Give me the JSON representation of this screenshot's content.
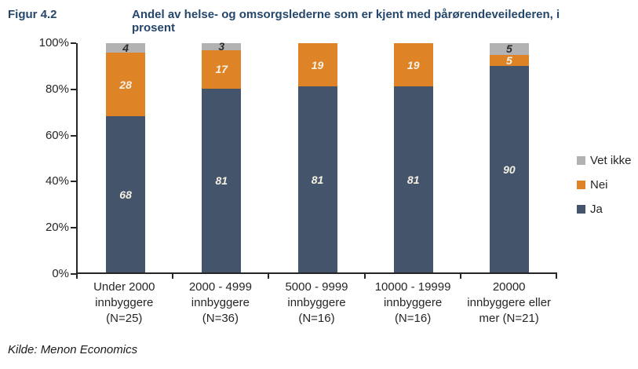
{
  "figure_label": "Figur 4.2",
  "title": "Andel av helse- og omsorgslederne som er kjent med pårørendeveilederen, i prosent",
  "source": "Kilde: Menon Economics",
  "colors": {
    "title_navy": "#25476B",
    "axis_black": "#262626",
    "ja": "#44546A",
    "nei": "#DF8327",
    "vet_ikke": "#B2B2B2",
    "label_light": "#F5F1E4",
    "label_dark": "#2B2B2B"
  },
  "chart_data": {
    "type": "bar",
    "subtype": "stacked-vertical-percent",
    "title": "Andel av helse- og omsorgslederne som er kjent med pårørendeveilederen, i prosent",
    "categories": [
      "Under 2000\ninnbyggere\n(N=25)",
      "2000 - 4999\ninnbyggere\n(N=36)",
      "5000 - 9999\ninnbyggere\n(N=16)",
      "10000 - 19999\ninnbyggere\n(N=16)",
      "20000\ninnbyggere eller\nmer (N=21)"
    ],
    "series": [
      {
        "name": "Ja",
        "color": "#44546A",
        "label_color": "#F5F1E4",
        "values": [
          68,
          81,
          81,
          81,
          90
        ]
      },
      {
        "name": "Nei",
        "color": "#DF8327",
        "label_color": "#F5F1E4",
        "values": [
          28,
          17,
          19,
          19,
          5
        ]
      },
      {
        "name": "Vet ikke",
        "color": "#B2B2B2",
        "label_color": "#2B2B2B",
        "values": [
          4,
          3,
          0,
          0,
          5
        ]
      }
    ],
    "y_ticks": [
      "0%",
      "20%",
      "40%",
      "60%",
      "80%",
      "100%"
    ],
    "ylim": [
      0,
      100
    ],
    "xlabel": "",
    "ylabel": "",
    "grid": false,
    "legend_position": "right",
    "legend_order_top_to_bottom": [
      "Vet ikke",
      "Nei",
      "Ja"
    ]
  }
}
